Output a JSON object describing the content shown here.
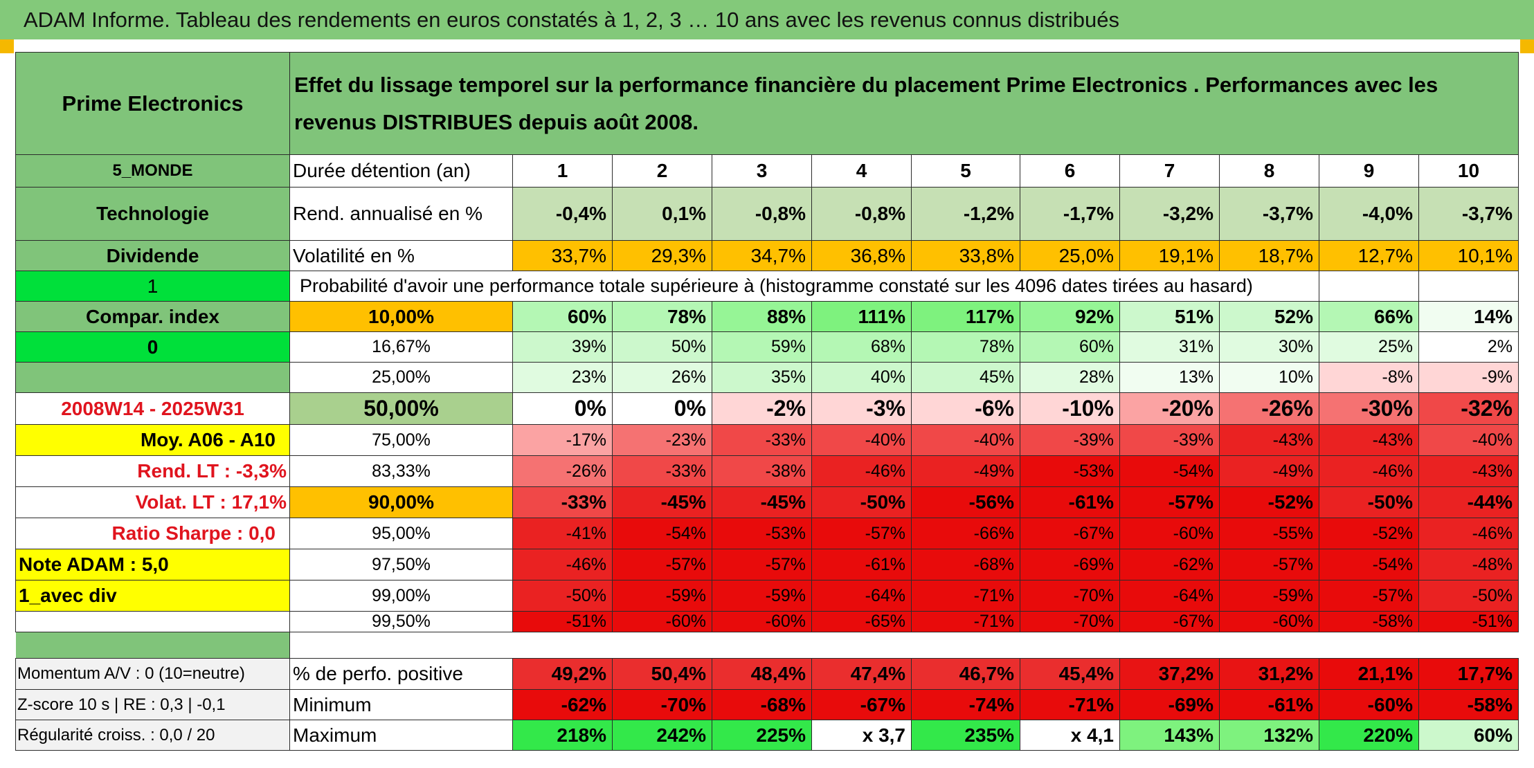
{
  "title": "ADAM Informe. Tableau des rendements en euros constatés à 1, 2, 3 … 10 ans avec les revenus connus distribués",
  "header": {
    "name": "Prime Electronics",
    "description": "Effet du lissage temporel sur la performance financière du placement Prime Electronics . Performances avec les revenus DISTRIBUES depuis août 2008."
  },
  "left": {
    "zone": "5_MONDE",
    "sector": "Technologie",
    "dividend_label": "Dividende",
    "flag1": "1",
    "compar_index": "Compar. index",
    "flag0": "0",
    "period": "2008W14 - 2025W31",
    "moy": "Moy. A06 - A10",
    "rend_lt": "Rend. LT :   -3,3%",
    "volat_lt": "Volat. LT :   17,1%",
    "sharpe": "Ratio Sharpe :    0,0",
    "note": "Note ADAM : 5,0",
    "avec_div": "1_avec div",
    "momentum": "Momentum A/V : 0 (10=neutre)",
    "zscore": "Z-score 10 s | RE : 0,3 | -0,1",
    "regularite": "Régularité croiss. : 0,0 / 20"
  },
  "labels": {
    "duree": "Durée détention (an)",
    "rend": "Rend. annualisé en %",
    "vol": "Volatilité en %",
    "proba": "Probabilité d'avoir une performance totale supérieure à (histogramme constaté sur les 4096 dates tirées au hasard)",
    "pos": "% de perfo. positive",
    "min": "Minimum",
    "max": "Maximum"
  },
  "colors": {
    "title_green": "#83c97a",
    "label_green": "#80c47a",
    "bright_green": "#00e03a",
    "orange": "#ffc000",
    "yellow": "#ffff00",
    "red_text": "#e0141e"
  },
  "years": [
    "1",
    "2",
    "3",
    "4",
    "5",
    "6",
    "7",
    "8",
    "9",
    "10"
  ],
  "rend": [
    "-0,4%",
    "0,1%",
    "-0,8%",
    "-0,8%",
    "-1,2%",
    "-1,7%",
    "-3,2%",
    "-3,7%",
    "-4,0%",
    "-3,7%"
  ],
  "vol": [
    "33,7%",
    "29,3%",
    "34,7%",
    "36,8%",
    "33,8%",
    "25,0%",
    "19,1%",
    "18,7%",
    "12,7%",
    "10,1%"
  ],
  "quantiles": [
    {
      "label": "10,00%",
      "values": [
        "60%",
        "78%",
        "88%",
        "111%",
        "117%",
        "92%",
        "51%",
        "52%",
        "66%",
        "14%"
      ]
    },
    {
      "label": "16,67%",
      "values": [
        "39%",
        "50%",
        "59%",
        "68%",
        "78%",
        "60%",
        "31%",
        "30%",
        "25%",
        "2%"
      ]
    },
    {
      "label": "25,00%",
      "values": [
        "23%",
        "26%",
        "35%",
        "40%",
        "45%",
        "28%",
        "13%",
        "10%",
        "-8%",
        "-9%"
      ]
    },
    {
      "label": "50,00%",
      "values": [
        "0%",
        "0%",
        "-2%",
        "-3%",
        "-6%",
        "-10%",
        "-20%",
        "-26%",
        "-30%",
        "-32%"
      ]
    },
    {
      "label": "75,00%",
      "values": [
        "-17%",
        "-23%",
        "-33%",
        "-40%",
        "-40%",
        "-39%",
        "-39%",
        "-43%",
        "-43%",
        "-40%"
      ]
    },
    {
      "label": "83,33%",
      "values": [
        "-26%",
        "-33%",
        "-38%",
        "-46%",
        "-49%",
        "-53%",
        "-54%",
        "-49%",
        "-46%",
        "-43%"
      ]
    },
    {
      "label": "90,00%",
      "values": [
        "-33%",
        "-45%",
        "-45%",
        "-50%",
        "-56%",
        "-61%",
        "-57%",
        "-52%",
        "-50%",
        "-44%"
      ]
    },
    {
      "label": "95,00%",
      "values": [
        "-41%",
        "-54%",
        "-53%",
        "-57%",
        "-66%",
        "-67%",
        "-60%",
        "-55%",
        "-52%",
        "-46%"
      ]
    },
    {
      "label": "97,50%",
      "values": [
        "-46%",
        "-57%",
        "-57%",
        "-61%",
        "-68%",
        "-69%",
        "-62%",
        "-57%",
        "-54%",
        "-48%"
      ]
    },
    {
      "label": "99,00%",
      "values": [
        "-50%",
        "-59%",
        "-59%",
        "-64%",
        "-71%",
        "-70%",
        "-64%",
        "-59%",
        "-57%",
        "-50%"
      ]
    },
    {
      "label": "99,50%",
      "values": [
        "-51%",
        "-60%",
        "-60%",
        "-65%",
        "-71%",
        "-70%",
        "-67%",
        "-60%",
        "-58%",
        "-51%"
      ]
    }
  ],
  "pos": [
    "49,2%",
    "50,4%",
    "48,4%",
    "47,4%",
    "46,7%",
    "45,4%",
    "37,2%",
    "31,2%",
    "21,1%",
    "17,7%"
  ],
  "min": [
    "-62%",
    "-70%",
    "-68%",
    "-67%",
    "-74%",
    "-71%",
    "-69%",
    "-61%",
    "-60%",
    "-58%"
  ],
  "max": [
    "218%",
    "242%",
    "225%",
    "x 3,7",
    "235%",
    "x 4,1",
    "143%",
    "132%",
    "220%",
    "60%"
  ]
}
